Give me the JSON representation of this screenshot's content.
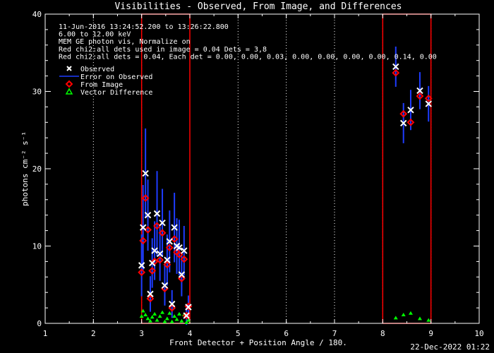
{
  "chart_data": {
    "type": "scatter",
    "title": "Visibilities - Observed, From Image, and Differences",
    "xlabel": "Front Detector + Position Angle / 180.",
    "ylabel": "photons cm⁻² s⁻¹",
    "xlim": [
      1,
      10
    ],
    "ylim": [
      0,
      40
    ],
    "xticks": [
      "1",
      "2",
      "3",
      "4",
      "5",
      "6",
      "7",
      "8",
      "9",
      "10"
    ],
    "yticks": [
      "0",
      "10",
      "20",
      "30",
      "40"
    ],
    "grid": "dotted vertical lines at each integer x",
    "annotations": [
      "11-Jun-2016 13:24:52.200 to 13:26:22.800",
      "6.00 to 12.00 keV",
      "MEM GE photon vis,   Normalize on",
      "Red chi2:all dets used in image = 0.04   Dets = 3,8",
      "Red chi2:all dets = 0.04,  Each det = 0.00, 0.00, 0.03, 0.00, 0.00, 0.00, 0.00, 0.14, 0.00"
    ],
    "legend": {
      "placement": "top-left",
      "entries": [
        "Observed",
        "Error on Observed",
        "From Image",
        "Vector Difference"
      ]
    },
    "highlight_boxes_x": [
      [
        3,
        4
      ],
      [
        8,
        9
      ]
    ],
    "series": [
      {
        "name": "Observed",
        "marker": "x",
        "color": "#ffffff",
        "x": [
          3.0,
          3.03,
          3.08,
          3.13,
          3.18,
          3.22,
          3.27,
          3.32,
          3.38,
          3.43,
          3.48,
          3.53,
          3.58,
          3.63,
          3.68,
          3.73,
          3.78,
          3.83,
          3.88,
          3.93,
          3.97,
          8.27,
          8.43,
          8.58,
          8.77,
          8.95
        ],
        "y": [
          7.5,
          12.4,
          19.4,
          14.0,
          3.8,
          7.8,
          9.4,
          14.2,
          9.0,
          13.0,
          4.9,
          8.2,
          10.6,
          2.5,
          12.4,
          10.0,
          9.8,
          6.3,
          9.4,
          1.0,
          2.1,
          33.2,
          25.9,
          27.6,
          30.1,
          28.4
        ],
        "error": [
          4.0,
          5.5,
          5.8,
          4.6,
          2.3,
          3.2,
          3.8,
          5.5,
          3.5,
          4.4,
          2.6,
          3.3,
          4.0,
          1.8,
          4.5,
          3.6,
          3.6,
          2.8,
          3.2,
          1.2,
          1.5,
          2.6,
          2.6,
          2.6,
          2.4,
          2.3
        ]
      },
      {
        "name": "From Image",
        "marker": "diamond",
        "color": "#ff0000",
        "x": [
          3.0,
          3.03,
          3.08,
          3.13,
          3.18,
          3.22,
          3.27,
          3.32,
          3.38,
          3.43,
          3.48,
          3.53,
          3.58,
          3.63,
          3.68,
          3.73,
          3.78,
          3.83,
          3.88,
          3.93,
          3.97,
          8.27,
          8.43,
          8.58,
          8.77,
          8.95
        ],
        "y": [
          6.6,
          10.7,
          16.2,
          12.1,
          3.2,
          6.8,
          8.0,
          12.6,
          8.2,
          11.7,
          4.5,
          7.6,
          9.8,
          2.0,
          10.9,
          9.2,
          8.9,
          5.8,
          8.3,
          1.0,
          2.2,
          32.4,
          27.1,
          26.0,
          29.4,
          29.1
        ]
      },
      {
        "name": "Vector Difference",
        "marker": "triangle",
        "color": "#00ff00",
        "x": [
          3.0,
          3.03,
          3.08,
          3.13,
          3.18,
          3.22,
          3.27,
          3.32,
          3.38,
          3.43,
          3.48,
          3.53,
          3.58,
          3.63,
          3.68,
          3.73,
          3.78,
          3.83,
          3.88,
          3.93,
          3.97,
          8.27,
          8.43,
          8.58,
          8.77,
          8.95
        ],
        "y": [
          0.9,
          1.6,
          1.1,
          0.6,
          0.3,
          0.8,
          1.2,
          0.4,
          0.9,
          1.4,
          0.2,
          0.6,
          1.3,
          0.2,
          0.9,
          0.5,
          1.2,
          0.3,
          1.1,
          0.1,
          0.4,
          0.7,
          1.1,
          1.3,
          0.6,
          0.4
        ]
      }
    ]
  },
  "footer": {
    "timestamp": "22-Dec-2022 01:22"
  }
}
